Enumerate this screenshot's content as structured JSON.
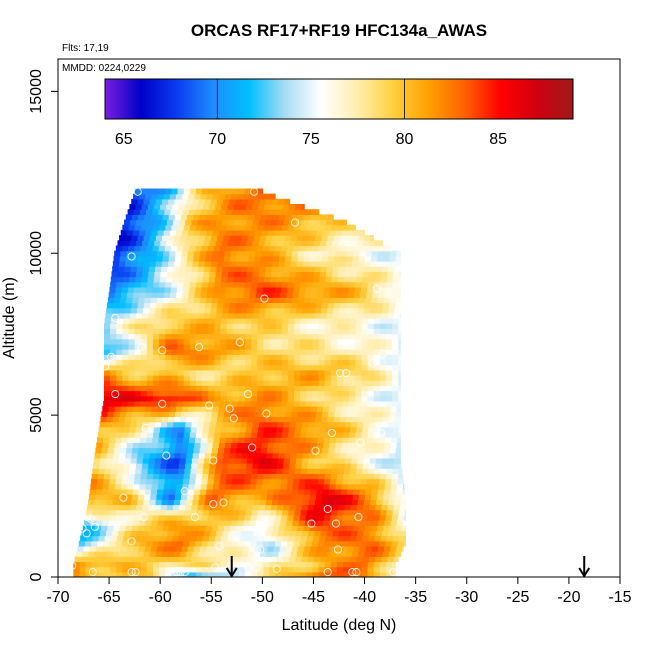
{
  "chart_data": {
    "type": "heatmap",
    "title": "ORCAS RF17+RF19 HFC134a_AWAS",
    "flights_label": "Flts: 17,19",
    "mmdd_label": "MMDD: 0224,0229",
    "xlabel": "Latitude (deg N)",
    "ylabel": "Altitude (m)",
    "xlim": [
      -70,
      -15
    ],
    "ylim": [
      0,
      16000
    ],
    "x_ticks": [
      -70,
      -65,
      -60,
      -55,
      -50,
      -45,
      -40,
      -35,
      -30,
      -25,
      -20,
      -15
    ],
    "y_ticks": [
      0,
      5000,
      10000,
      15000
    ],
    "colorbar": {
      "min": 64,
      "max": 89,
      "ticks": [
        65,
        70,
        75,
        80,
        85
      ],
      "colors": [
        "#7a1fe0",
        "#0000c8",
        "#0a3cf0",
        "#1e8cff",
        "#00bfff",
        "#a8dcf4",
        "#ffffff",
        "#ffeeb0",
        "#ffd040",
        "#ffa000",
        "#ff6000",
        "#ff0000",
        "#d00010",
        "#a01a1a"
      ]
    },
    "arrows_lat": [
      -53,
      -18.5
    ],
    "field_nodes": [
      {
        "y": 0,
        "x": [
          -68.5,
          -65,
          -61,
          -57,
          -53,
          -48,
          -44,
          -40,
          -37
        ],
        "v": [
          82,
          79,
          80,
          70,
          74,
          80,
          84,
          82,
          78
        ]
      },
      {
        "y": 400,
        "x": [
          -68.5,
          -64,
          -60,
          -55,
          -50,
          -45,
          -40,
          -37
        ],
        "v": [
          82,
          80,
          79,
          78,
          76,
          80,
          83,
          78
        ]
      },
      {
        "y": 1000,
        "x": [
          -68,
          -63,
          -58,
          -54,
          -49,
          -44,
          -39,
          -36
        ],
        "v": [
          72,
          80,
          83,
          77,
          74,
          82,
          83,
          79
        ]
      },
      {
        "y": 1600,
        "x": [
          -67.5,
          -63,
          -59,
          -55,
          -50,
          -45,
          -39,
          -36
        ],
        "v": [
          71,
          77,
          82,
          80,
          75,
          84,
          82,
          76
        ]
      },
      {
        "y": 2400,
        "x": [
          -67,
          -63,
          -59,
          -55,
          -50,
          -44,
          -39,
          -36
        ],
        "v": [
          82,
          80,
          70,
          83,
          80,
          87,
          82,
          75
        ]
      },
      {
        "y": 3600,
        "x": [
          -66.5,
          -62,
          -58,
          -54,
          -50,
          -45,
          -40,
          -36.5
        ],
        "v": [
          80,
          72,
          68,
          84,
          86,
          80,
          76,
          74
        ]
      },
      {
        "y": 4600,
        "x": [
          -66,
          -61,
          -58,
          -54,
          -50,
          -45,
          -40,
          -36.5
        ],
        "v": [
          81,
          76,
          70,
          80,
          84,
          82,
          78,
          75
        ]
      },
      {
        "y": 5500,
        "x": [
          -65.5,
          -62,
          -59,
          -55,
          -50,
          -45,
          -40,
          -36.5
        ],
        "v": [
          87,
          85,
          86,
          81,
          82,
          79,
          76,
          75
        ]
      },
      {
        "y": 6300,
        "x": [
          -65.5,
          -62,
          -58,
          -54,
          -50,
          -45,
          -40,
          -36.5
        ],
        "v": [
          82,
          79,
          79,
          78,
          80,
          81,
          79,
          75
        ]
      },
      {
        "y": 7000,
        "x": [
          -65.5,
          -62,
          -59,
          -55,
          -50,
          -45,
          -40,
          -36.5
        ],
        "v": [
          71,
          76,
          83,
          82,
          79,
          78,
          77,
          75
        ]
      },
      {
        "y": 7800,
        "x": [
          -65.5,
          -62,
          -59,
          -55,
          -50,
          -45,
          -40,
          -36.5
        ],
        "v": [
          74,
          78,
          80,
          80,
          79,
          77,
          76,
          75
        ]
      },
      {
        "y": 8800,
        "x": [
          -65,
          -62,
          -58,
          -54,
          -50,
          -45,
          -40,
          -36.5
        ],
        "v": [
          69,
          72,
          76,
          82,
          84,
          82,
          80,
          76
        ]
      },
      {
        "y": 10000,
        "x": [
          -64.5,
          -61,
          -58,
          -54,
          -50,
          -46,
          -41,
          -36.5
        ],
        "v": [
          67,
          71,
          77,
          83,
          81,
          78,
          76,
          75
        ]
      },
      {
        "y": 11000,
        "x": [
          -63.5,
          -60,
          -57,
          -53,
          -50,
          -46,
          -42
        ],
        "v": [
          66,
          72,
          80,
          82,
          82,
          81,
          79
        ]
      },
      {
        "y": 11900,
        "x": [
          -62.5,
          -59,
          -56,
          -53,
          -50
        ],
        "v": [
          68,
          72,
          79,
          82,
          83
        ]
      }
    ],
    "samples": [
      {
        "lat": -62.2,
        "alt": 11900
      },
      {
        "lat": -50.8,
        "alt": 11900
      },
      {
        "lat": -46.8,
        "alt": 10950
      },
      {
        "lat": -62.8,
        "alt": 9900
      },
      {
        "lat": -49.8,
        "alt": 8600
      },
      {
        "lat": -38.8,
        "alt": 8900
      },
      {
        "lat": -64.4,
        "alt": 8000
      },
      {
        "lat": -52.2,
        "alt": 7250
      },
      {
        "lat": -61.8,
        "alt": 7100
      },
      {
        "lat": -59.8,
        "alt": 7000
      },
      {
        "lat": -56.2,
        "alt": 7100
      },
      {
        "lat": -38.2,
        "alt": 6900
      },
      {
        "lat": -64.8,
        "alt": 6800
      },
      {
        "lat": -65.4,
        "alt": 6500
      },
      {
        "lat": -42.4,
        "alt": 6300
      },
      {
        "lat": -41.8,
        "alt": 6300
      },
      {
        "lat": -39.2,
        "alt": 6600
      },
      {
        "lat": -64.4,
        "alt": 5650
      },
      {
        "lat": -51.4,
        "alt": 5650
      },
      {
        "lat": -59.8,
        "alt": 5350
      },
      {
        "lat": -55.2,
        "alt": 5300
      },
      {
        "lat": -53.2,
        "alt": 5200
      },
      {
        "lat": -52.8,
        "alt": 4900
      },
      {
        "lat": -49.6,
        "alt": 5050
      },
      {
        "lat": -61.4,
        "alt": 4600
      },
      {
        "lat": -43.2,
        "alt": 4450
      },
      {
        "lat": -40.4,
        "alt": 4150
      },
      {
        "lat": -38.4,
        "alt": 4450
      },
      {
        "lat": -67.8,
        "alt": 3850
      },
      {
        "lat": -59.4,
        "alt": 3750
      },
      {
        "lat": -54.8,
        "alt": 3600
      },
      {
        "lat": -51.0,
        "alt": 4000
      },
      {
        "lat": -44.8,
        "alt": 3900
      },
      {
        "lat": -57.6,
        "alt": 2650
      },
      {
        "lat": -63.6,
        "alt": 2450
      },
      {
        "lat": -68.0,
        "alt": 2550
      },
      {
        "lat": -54.8,
        "alt": 2250
      },
      {
        "lat": -53.8,
        "alt": 2300
      },
      {
        "lat": -43.6,
        "alt": 2100
      },
      {
        "lat": -66.8,
        "alt": 1800
      },
      {
        "lat": -67.6,
        "alt": 1500
      },
      {
        "lat": -66.4,
        "alt": 1550
      },
      {
        "lat": -61.6,
        "alt": 1850
      },
      {
        "lat": -56.6,
        "alt": 1850
      },
      {
        "lat": -49.6,
        "alt": 1650
      },
      {
        "lat": -45.2,
        "alt": 1650
      },
      {
        "lat": -42.8,
        "alt": 1650
      },
      {
        "lat": -40.6,
        "alt": 1850
      },
      {
        "lat": -67.2,
        "alt": 1350
      },
      {
        "lat": -62.8,
        "alt": 1100
      },
      {
        "lat": -54.2,
        "alt": 950
      },
      {
        "lat": -50.2,
        "alt": 850
      },
      {
        "lat": -42.6,
        "alt": 850
      },
      {
        "lat": -68.6,
        "alt": 350
      },
      {
        "lat": -66.6,
        "alt": 150
      },
      {
        "lat": -62.8,
        "alt": 150
      },
      {
        "lat": -62.4,
        "alt": 150
      },
      {
        "lat": -58.4,
        "alt": 150
      },
      {
        "lat": -58.0,
        "alt": 150
      },
      {
        "lat": -57.6,
        "alt": 150
      },
      {
        "lat": -54.6,
        "alt": 300
      },
      {
        "lat": -51.4,
        "alt": 300
      },
      {
        "lat": -50.6,
        "alt": 300
      },
      {
        "lat": -48.6,
        "alt": 250
      },
      {
        "lat": -43.6,
        "alt": 150
      },
      {
        "lat": -41.2,
        "alt": 150
      },
      {
        "lat": -40.8,
        "alt": 150
      },
      {
        "lat": -37.2,
        "alt": 150
      }
    ]
  }
}
